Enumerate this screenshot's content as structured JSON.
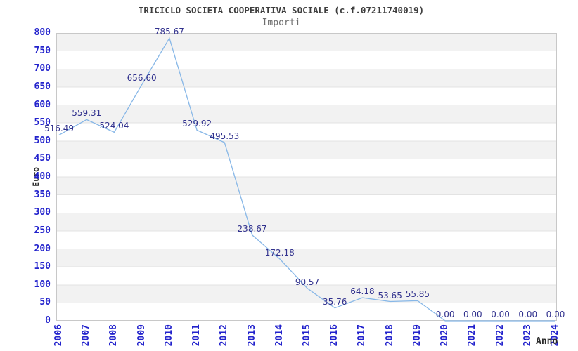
{
  "chart_data": {
    "type": "line",
    "title": "TRICICLO SOCIETA COOPERATIVA SOCIALE (c.f.07211740019)",
    "subtitle": "Importi",
    "xlabel": "Anno",
    "ylabel": "Euro",
    "categories": [
      "2006",
      "2007",
      "2008",
      "2009",
      "2010",
      "2011",
      "2012",
      "2013",
      "2014",
      "2015",
      "2016",
      "2017",
      "2018",
      "2019",
      "2020",
      "2021",
      "2022",
      "2023",
      "2024"
    ],
    "values": [
      516.49,
      559.31,
      524.04,
      656.6,
      785.67,
      529.92,
      495.53,
      238.67,
      172.18,
      90.57,
      35.76,
      64.18,
      53.65,
      55.85,
      0,
      0,
      0,
      0,
      0
    ],
    "value_labels": [
      "516.49",
      "559.31",
      "524.04",
      "656.60",
      "785.67",
      "529.92",
      "495.53",
      "238.67",
      "172.18",
      "90.57",
      "35.76",
      "64.18",
      "53.65",
      "55.85",
      "0.00",
      "0.00",
      "0.00",
      "0.00",
      "0.00"
    ],
    "ylim": [
      0,
      800
    ],
    "y_tick_step": 50,
    "y_ticks": [
      "0",
      "50",
      "100",
      "150",
      "200",
      "250",
      "300",
      "350",
      "400",
      "450",
      "500",
      "550",
      "600",
      "650",
      "700",
      "750",
      "800"
    ],
    "grid": "horizontal-bands",
    "legend": "none",
    "colors": {
      "line": "#87b7e7",
      "tick_label": "#2222cc",
      "value_label": "#32328e",
      "band": "#f2f2f2",
      "gridline": "#e3e3e3",
      "plot_border": "#c8c8c8",
      "title": "#3d3d3d",
      "subtitle": "#6e6e6e",
      "axis_title": "#2b2b2b",
      "background": "#ffffff"
    }
  }
}
